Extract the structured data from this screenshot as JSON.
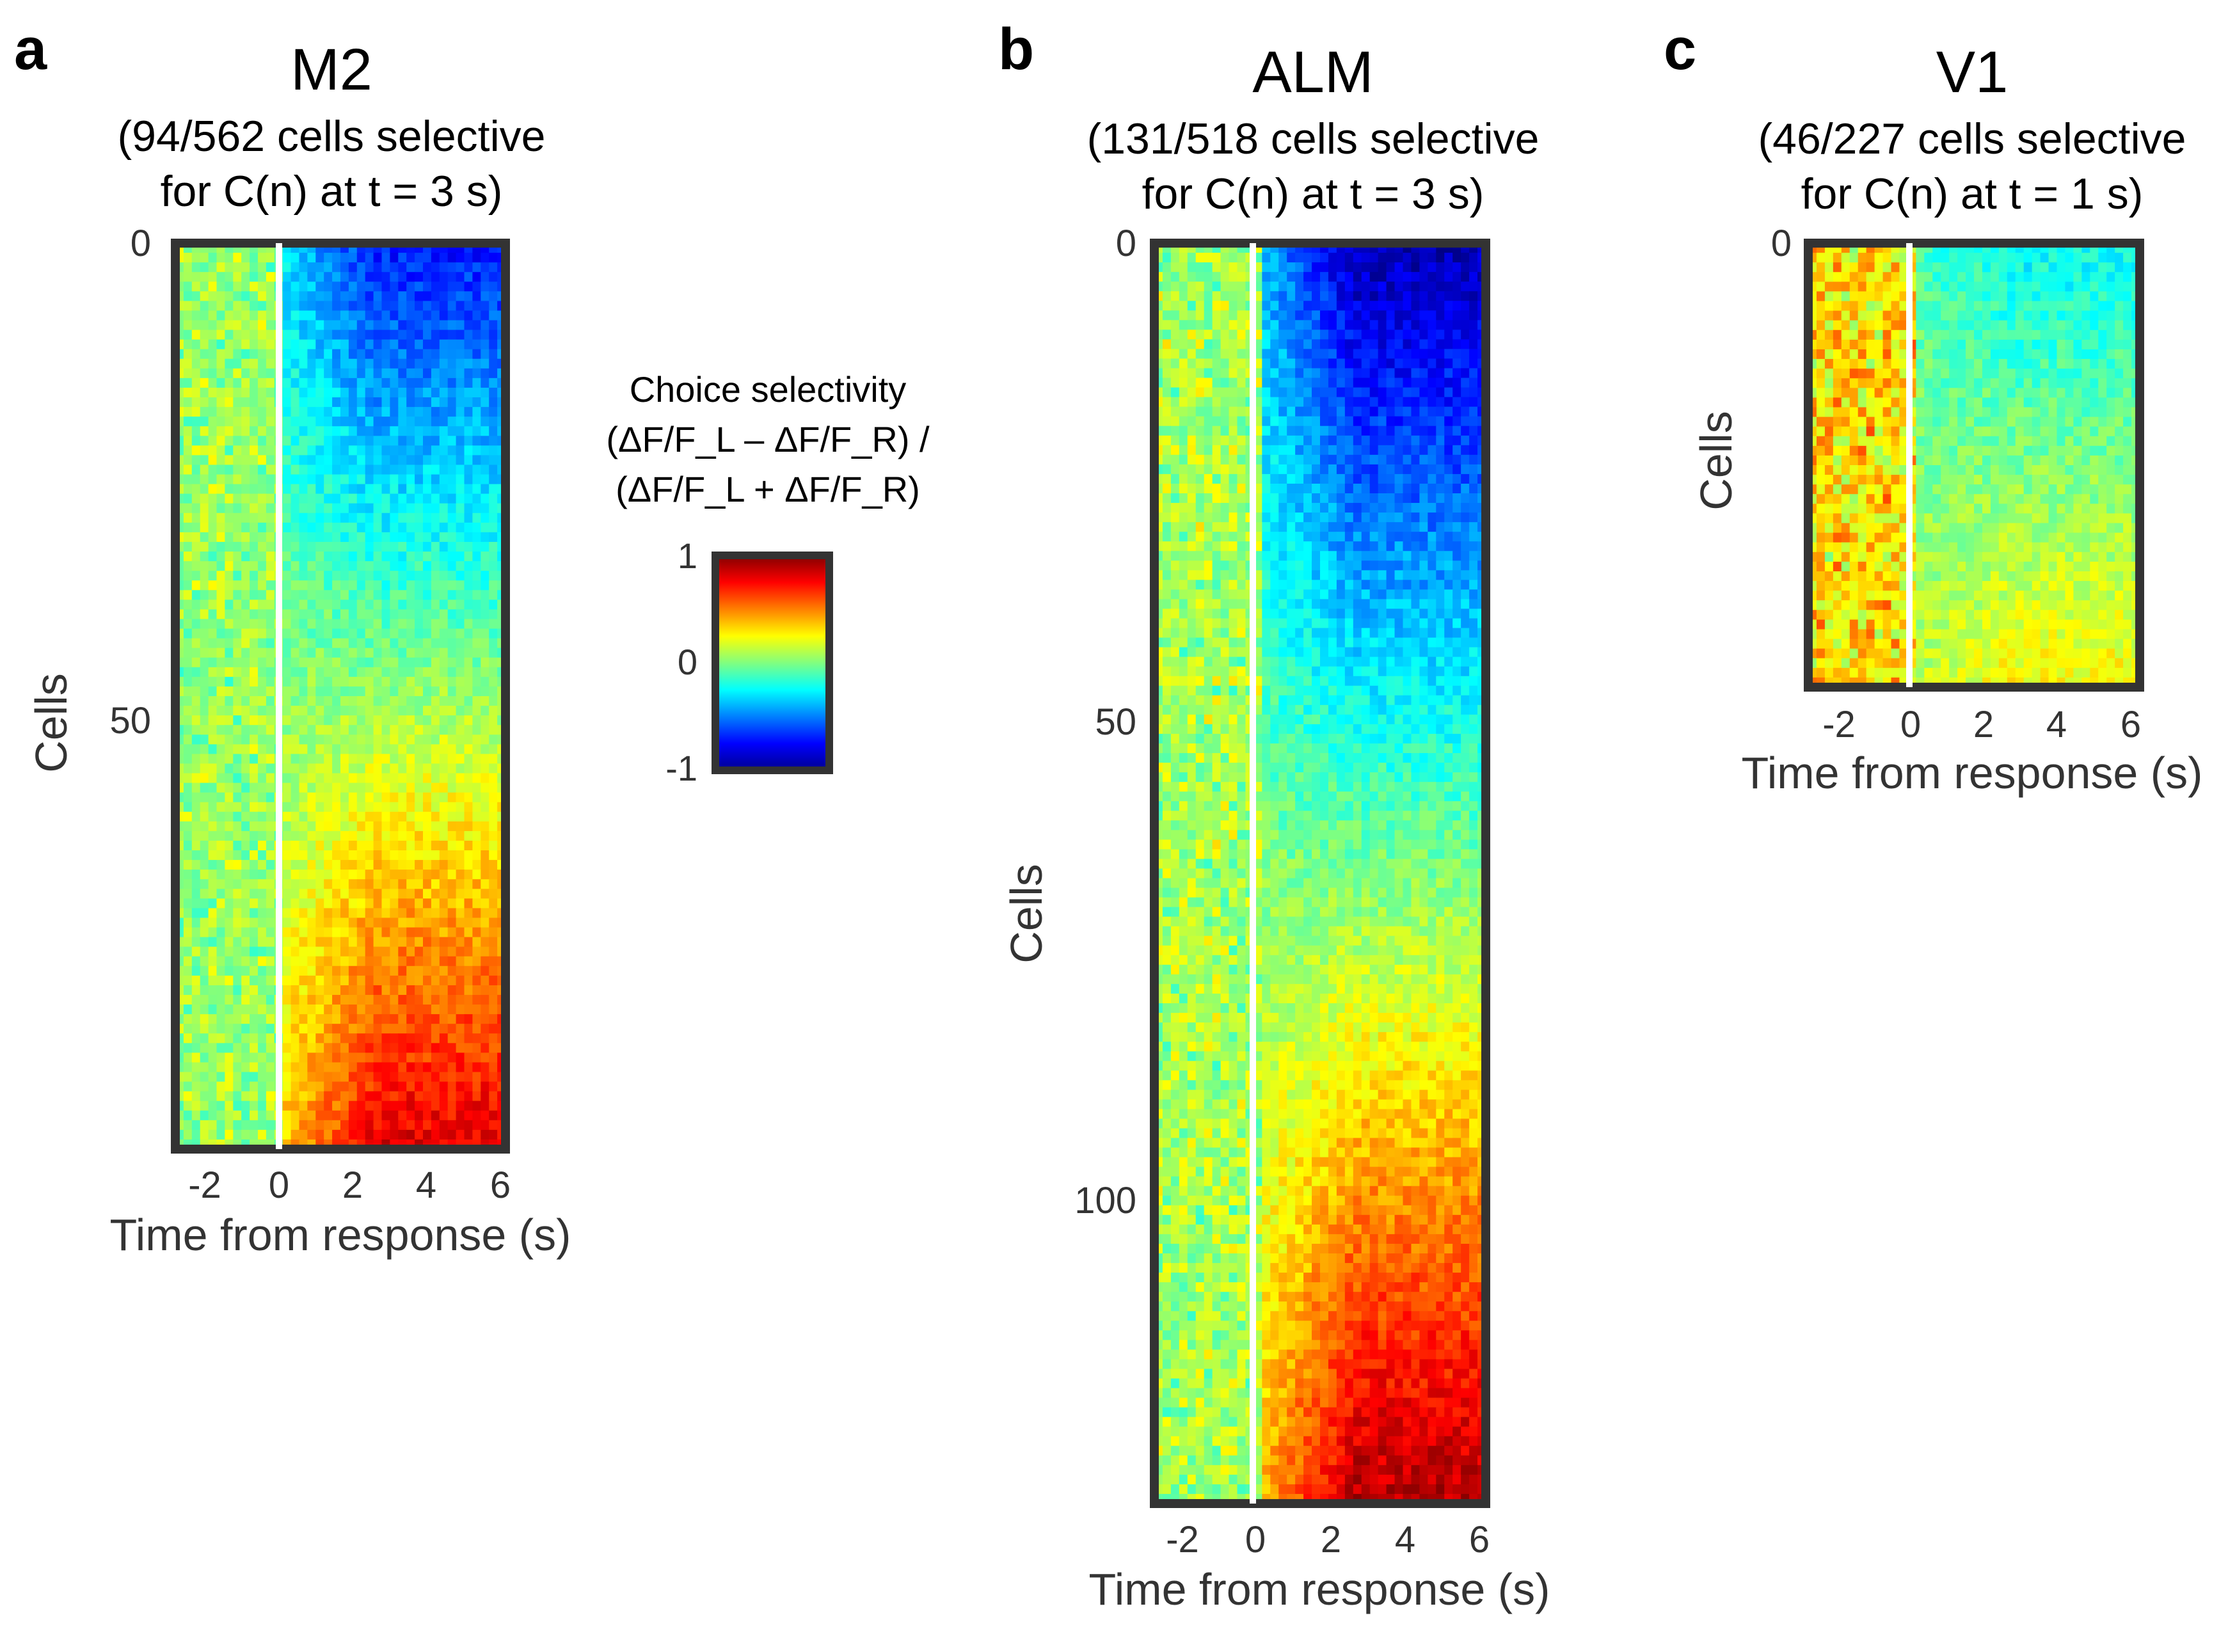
{
  "figure": {
    "colorbar": {
      "label_lines": [
        "Choice selectivity",
        "(ΔF/F_L – ΔF/F_R) /",
        "(ΔF/F_L + ΔF/F_R)"
      ],
      "ticks": [
        "1",
        "0",
        "-1"
      ],
      "range": [
        -1,
        1
      ],
      "colormap": "jet"
    }
  },
  "chart_data": [
    {
      "type": "heatmap",
      "panel": "a",
      "title": "M2",
      "subtitle_line1": "(94/562 cells selective",
      "subtitle_line2": "for C(n) at t = 3 s)",
      "xlabel": "Time from response (s)",
      "ylabel": "Cells",
      "x_ticks": [
        "-2",
        "0",
        "2",
        "4",
        "6"
      ],
      "x_range": [
        -3,
        6
      ],
      "y_ticks": [
        "0",
        "50"
      ],
      "n_cells": 94,
      "response_line_x": 0,
      "color_range": [
        -1,
        1
      ],
      "profile": {
        "pre": [
          -0.05,
          0.15
        ],
        "post_start": -0.7,
        "post_end": 0.8
      }
    },
    {
      "type": "heatmap",
      "panel": "b",
      "title": "ALM",
      "subtitle_line1": "(131/518 cells selective",
      "subtitle_line2": "for C(n) at t = 3 s)",
      "xlabel": "Time from response (s)",
      "ylabel": "Cells",
      "x_ticks": [
        "-2",
        "0",
        "2",
        "4",
        "6"
      ],
      "x_range": [
        -3,
        6
      ],
      "y_ticks": [
        "0",
        "50",
        "100"
      ],
      "n_cells": 131,
      "response_line_x": 0,
      "color_range": [
        -1,
        1
      ],
      "profile": {
        "pre": [
          -0.05,
          0.2
        ],
        "post_start": -0.9,
        "post_end": 0.9
      }
    },
    {
      "type": "heatmap",
      "panel": "c",
      "title": "V1",
      "subtitle_line1": "(46/227 cells selective",
      "subtitle_line2": "for C(n) at t = 1 s)",
      "xlabel": "Time from response (s)",
      "ylabel": "Cells",
      "x_ticks": [
        "-2",
        "0",
        "2",
        "4",
        "6"
      ],
      "x_range": [
        -3,
        6
      ],
      "y_ticks": [
        "0"
      ],
      "n_cells": 46,
      "response_line_x": 0,
      "color_range": [
        -1,
        1
      ],
      "profile": {
        "pre": [
          0.1,
          0.5
        ],
        "post_start": -0.25,
        "post_end": 0.25
      }
    }
  ]
}
